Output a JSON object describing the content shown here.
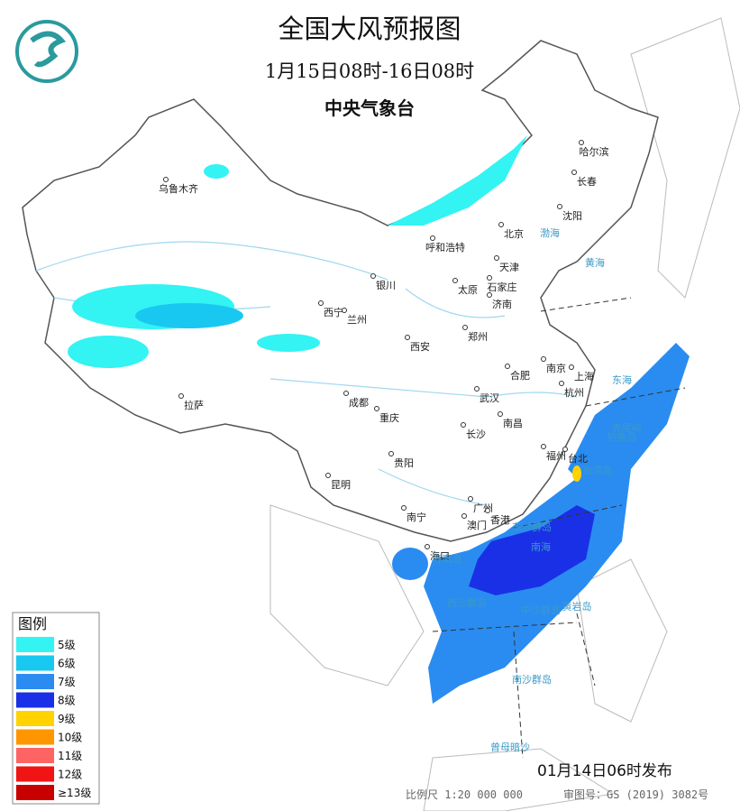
{
  "header": {
    "title": "全国大风预报图",
    "period": "1月15日08时-16日08时",
    "issuer": "中央气象台"
  },
  "cities": [
    "乌鲁木齐",
    "哈尔滨",
    "长春",
    "沈阳",
    "呼和浩特",
    "北京",
    "天津",
    "银川",
    "太原",
    "石家庄",
    "济南",
    "西宁",
    "兰州",
    "郑州",
    "西安",
    "南京",
    "上海",
    "合肥",
    "杭州",
    "成都",
    "武汉",
    "拉萨",
    "重庆",
    "南昌",
    "长沙",
    "福州",
    "台北",
    "贵阳",
    "昆明",
    "广州",
    "香港",
    "澳门",
    "南宁",
    "海口"
  ],
  "seas": [
    "渤海",
    "黄海",
    "东海",
    "南海",
    "台湾岛",
    "海南岛",
    "钓鱼岛",
    "赤尾屿",
    "东沙群岛",
    "中沙群岛",
    "西沙群岛",
    "黄岩岛",
    "南沙群岛",
    "曾母暗沙"
  ],
  "legend": {
    "title": "图例",
    "items": [
      {
        "label": "5级",
        "color": "#33f3f3"
      },
      {
        "label": "6级",
        "color": "#19c8f0"
      },
      {
        "label": "7级",
        "color": "#2a8cf0"
      },
      {
        "label": "8级",
        "color": "#1a30e6"
      },
      {
        "label": "9级",
        "color": "#ffd200"
      },
      {
        "label": "10级",
        "color": "#ff9600"
      },
      {
        "label": "11级",
        "color": "#ff6464"
      },
      {
        "label": "12级",
        "color": "#f01414"
      },
      {
        "label": "≥13级",
        "color": "#c80000"
      }
    ]
  },
  "footer": {
    "issued": "01月14日06时发布",
    "scale": "比例尺 1:20 000 000",
    "approval": "审图号：GS (2019) 3082号"
  }
}
